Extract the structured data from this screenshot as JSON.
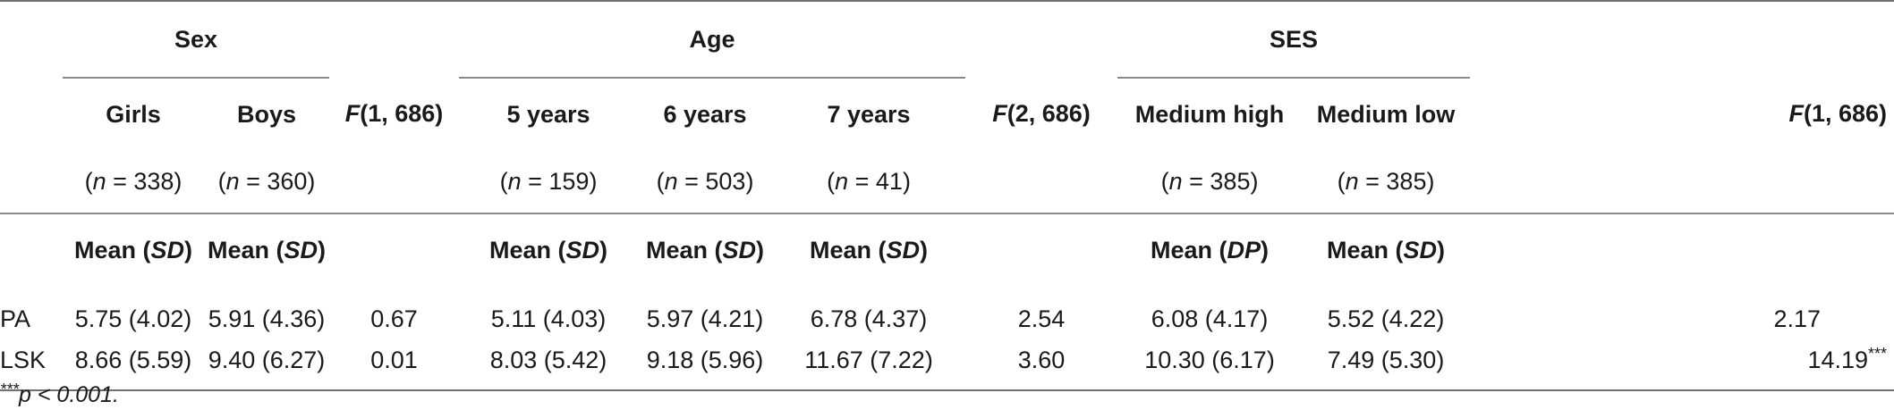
{
  "groups": {
    "sex": "Sex",
    "age": "Age",
    "ses": "SES"
  },
  "columns": {
    "girls": "Girls",
    "boys": "Boys",
    "f_sex_prefix": "F",
    "f_sex_df": "(1, 686)",
    "y5": "5 years",
    "y6": "6 years",
    "y7": "7 years",
    "f_age_prefix": "F",
    "f_age_df": "(2, 686)",
    "med_high": "Medium high",
    "med_low": "Medium low",
    "f_ses_prefix": "F",
    "f_ses_df": "(1, 686)"
  },
  "n_row": {
    "girls": "(n = 338)",
    "boys": "(n = 360)",
    "y5": "(n = 159)",
    "y6": "(n = 503)",
    "y7": "(n = 41)",
    "med_high": "(n = 385)",
    "med_low": "(n = 385)"
  },
  "mean_row": {
    "girls": [
      "Mean (",
      "SD",
      ")"
    ],
    "boys": [
      "Mean (",
      "SD",
      ")"
    ],
    "y5": [
      "Mean (",
      "SD",
      ")"
    ],
    "y6": [
      "Mean (",
      "SD",
      ")"
    ],
    "y7": [
      "Mean (",
      "SD",
      ")"
    ],
    "med_high": [
      "Mean (",
      "DP",
      ")"
    ],
    "med_low": [
      "Mean (",
      "SD",
      ")"
    ]
  },
  "rows": [
    {
      "label": "PA",
      "girls": "5.75 (4.02)",
      "boys": "5.91 (4.36)",
      "f_sex": "0.67",
      "y5": "5.11 (4.03)",
      "y6": "5.97 (4.21)",
      "y7": "6.78 (4.37)",
      "f_age": "2.54",
      "med_high": "6.08 (4.17)",
      "med_low": "5.52 (4.22)",
      "f_ses": "2.17",
      "f_ses_sup": ""
    },
    {
      "label": "LSK",
      "girls": "8.66 (5.59)",
      "boys": "9.40 (6.27)",
      "f_sex": "0.01",
      "y5": "8.03 (5.42)",
      "y6": "9.18 (5.96)",
      "y7": "11.67 (7.22)",
      "f_age": "3.60",
      "med_high": "10.30 (6.17)",
      "med_low": "7.49 (5.30)",
      "f_ses": "14.19",
      "f_ses_sup": "***"
    }
  ],
  "footnote": {
    "sup": "***",
    "text": "p < 0.001."
  }
}
